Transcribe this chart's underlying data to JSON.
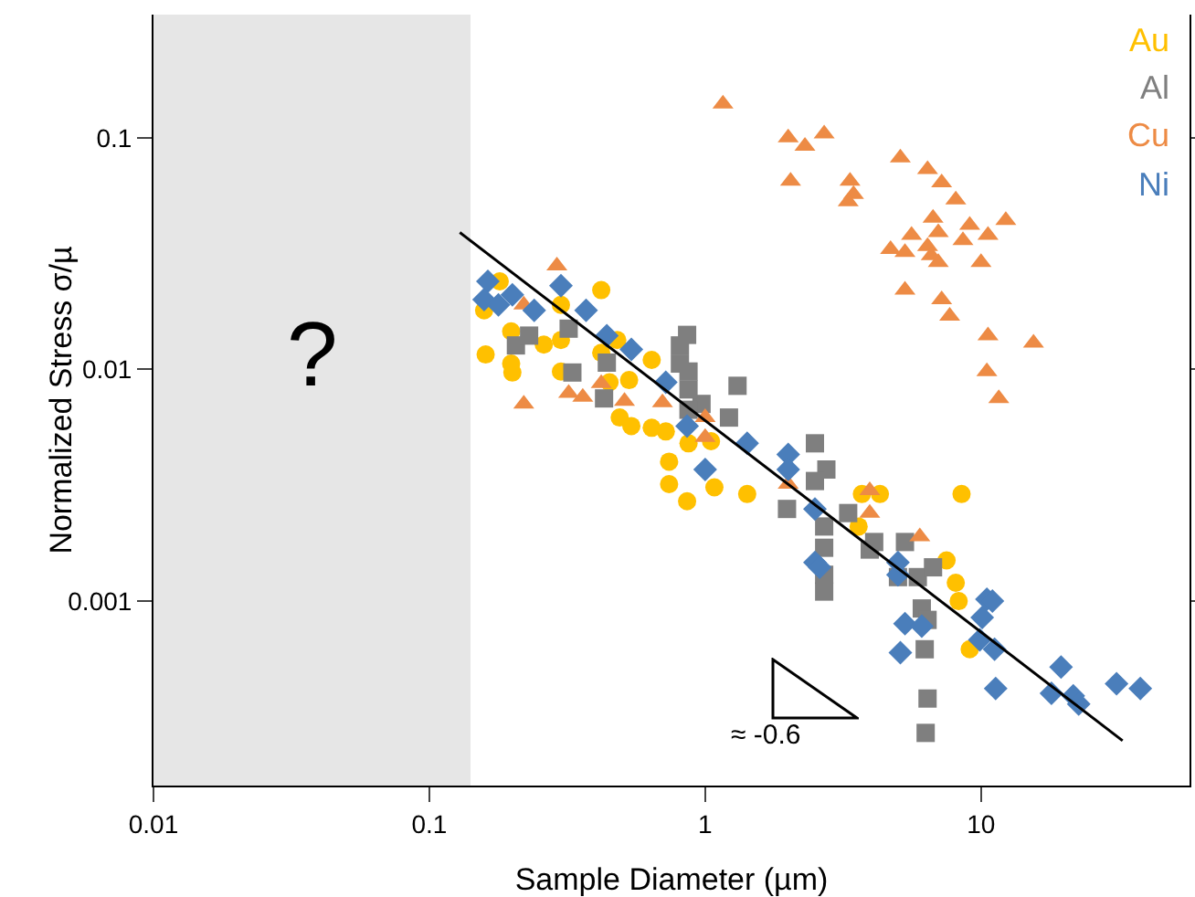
{
  "chart_data": {
    "type": "scatter",
    "xlabel": "Sample Diameter (µm)",
    "ylabel": "Normalized Stress σ/µ",
    "log": "xy",
    "xlim": [
      0.01,
      57
    ],
    "ylim": [
      0.00016,
      0.34
    ],
    "xticks": [
      0.01,
      0.1,
      1,
      10
    ],
    "yticks": [
      0.001,
      0.01,
      0.1
    ],
    "grid": false,
    "legend": "top right",
    "annotations": [
      "≈ -0.6"
    ],
    "bands": [
      {
        "axis": "x",
        "from": 0.01,
        "to": 0.141,
        "label": "?",
        "color": "#e6e6e6"
      }
    ],
    "series": [
      {
        "name": "Au",
        "color": "#ffc000",
        "marker": "circle",
        "x": [
          0.18,
          0.198,
          0.198,
          0.2,
          0.26,
          0.3,
          0.3,
          0.3,
          0.48,
          0.45,
          0.53,
          0.54,
          0.72,
          1.05,
          1.08,
          8.5,
          4.3,
          8.1,
          8.3,
          0.158,
          0.16,
          9.1,
          0.42,
          0.64,
          0.42,
          0.49,
          0.64,
          0.74,
          0.74,
          0.86,
          1.42,
          0.87,
          3.7,
          3.6,
          7.5
        ],
        "values": [
          0.024,
          0.0146,
          0.0106,
          0.0097,
          0.0128,
          0.019,
          0.0134,
          0.0098,
          0.0134,
          0.0088,
          0.009,
          0.0057,
          0.0054,
          0.0049,
          0.0031,
          0.0029,
          0.0029,
          0.0012,
          0.001,
          0.018,
          0.0116,
          0.00062,
          0.022,
          0.011,
          0.0118,
          0.0062,
          0.0056,
          0.004,
          0.0032,
          0.0027,
          0.0029,
          0.0048,
          0.0029,
          0.0021,
          0.0015
        ]
      },
      {
        "name": "Al",
        "color": "#7f7f7f",
        "marker": "square",
        "x": [
          0.206,
          0.23,
          0.32,
          0.33,
          0.44,
          0.43,
          0.97,
          0.87,
          1.98,
          3.95,
          5.9,
          6.1,
          5.0,
          0.86,
          0.81,
          0.81,
          0.87,
          0.87,
          1.31,
          1.22,
          2.5,
          2.75,
          2.5,
          3.3,
          2.7,
          2.7,
          2.7,
          2.7,
          6.25,
          6.4,
          6.3,
          5.3,
          6.7,
          6.4,
          4.1
        ],
        "values": [
          0.0127,
          0.014,
          0.015,
          0.0097,
          0.0107,
          0.0075,
          0.0071,
          0.0067,
          0.0025,
          0.00167,
          0.00127,
          0.00093,
          0.00127,
          0.0141,
          0.0127,
          0.0106,
          0.0098,
          0.0082,
          0.0085,
          0.0062,
          0.0048,
          0.0037,
          0.0033,
          0.0024,
          0.0021,
          0.0017,
          0.0013,
          0.0011,
          0.00062,
          0.00038,
          0.00027,
          0.0018,
          0.0014,
          0.00083,
          0.0018
        ]
      },
      {
        "name": "Cu",
        "color": "#ed8b45",
        "marker": "triangle",
        "x": [
          0.29,
          0.22,
          0.22,
          0.32,
          0.36,
          0.42,
          0.51,
          0.7,
          1.0,
          1.0,
          2.0,
          3.95,
          3.95,
          6.0,
          1.16,
          2.0,
          2.3,
          2.7,
          2.04,
          3.35,
          3.45,
          3.3,
          5.1,
          6.4,
          7.2,
          8.1,
          6.7,
          12.3,
          9.1,
          10.6,
          8.6,
          5.6,
          7.0,
          4.7,
          5.3,
          6.4,
          6.6,
          7.0,
          10,
          5.3,
          7.2,
          7.7,
          10.6,
          15.5,
          10.5,
          11.6
        ],
        "values": [
          0.028,
          0.019,
          0.0071,
          0.0079,
          0.0076,
          0.0087,
          0.0073,
          0.0072,
          0.0062,
          0.0051,
          0.0032,
          0.003,
          0.0024,
          0.0019,
          0.14,
          0.1,
          0.092,
          0.104,
          0.065,
          0.065,
          0.057,
          0.053,
          0.082,
          0.073,
          0.064,
          0.054,
          0.045,
          0.044,
          0.042,
          0.038,
          0.036,
          0.038,
          0.039,
          0.033,
          0.032,
          0.034,
          0.031,
          0.029,
          0.029,
          0.022,
          0.02,
          0.017,
          0.014,
          0.013,
          0.0098,
          0.0075
        ]
      },
      {
        "name": "Ni",
        "color": "#4a7ebb",
        "marker": "diamond",
        "x": [
          1.0,
          2.5,
          2.5,
          2.6,
          5.0,
          5.0,
          5.3,
          6.1,
          5.1,
          10.5,
          11,
          10.1,
          9.9,
          11.2,
          11.3,
          19.5,
          18,
          21.6,
          22.6,
          31,
          37.8,
          0.163,
          0.158,
          0.178,
          0.2,
          0.24,
          0.3,
          0.37,
          0.44,
          0.54,
          0.72,
          0.86,
          1.42,
          2.0,
          2.0
        ],
        "values": [
          0.0037,
          0.0025,
          0.00147,
          0.0014,
          0.00147,
          0.0013,
          0.0008,
          0.00078,
          0.0006,
          0.00102,
          0.001,
          0.00085,
          0.00068,
          0.00062,
          0.00042,
          0.00052,
          0.0004,
          0.00039,
          0.00036,
          0.00044,
          0.00042,
          0.024,
          0.02,
          0.019,
          0.021,
          0.018,
          0.023,
          0.018,
          0.014,
          0.0122,
          0.0088,
          0.0057,
          0.0048,
          0.0043,
          0.0037
        ]
      },
      {
        "type": "line",
        "color": "#000000",
        "x": [
          0.129,
          32.6
        ],
        "values": [
          0.039,
          0.00025
        ]
      }
    ]
  }
}
